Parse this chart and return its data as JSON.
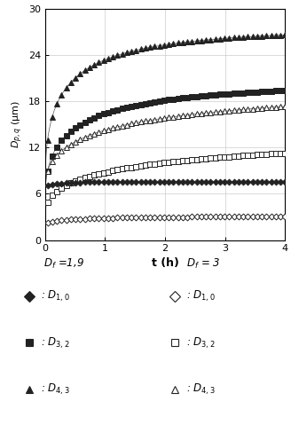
{
  "xlabel": "t (h)",
  "ylabel": "$D_{p,q}$ (μm)",
  "xlim": [
    0,
    4
  ],
  "ylim": [
    0,
    30
  ],
  "xticks": [
    0,
    1,
    2,
    3,
    4
  ],
  "yticks": [
    0,
    6,
    12,
    18,
    24,
    30
  ],
  "figsize": [
    3.28,
    4.79
  ],
  "dpi": 100,
  "curve_params": {
    "Df19_D43": {
      "a0": 7.0,
      "delta": 20.5,
      "b": 1.6,
      "c": 0.48,
      "filled": true,
      "marker": "^",
      "ms": 4.5
    },
    "Df19_D32": {
      "a0": 5.5,
      "delta": 15.0,
      "b": 1.3,
      "c": 0.5,
      "filled": true,
      "marker": "s",
      "ms": 4.0
    },
    "Df3_D43": {
      "a0": 6.8,
      "delta": 13.0,
      "b": 0.85,
      "c": 0.48,
      "filled": false,
      "marker": "^",
      "ms": 4.5
    },
    "Df3_D32": {
      "a0": 3.5,
      "delta": 10.0,
      "b": 0.75,
      "c": 0.5,
      "filled": false,
      "marker": "s",
      "ms": 4.0
    },
    "Df19_D10": {
      "a0": 6.8,
      "delta": 0.8,
      "b": 2.5,
      "c": 0.55,
      "filled": true,
      "marker": "D",
      "ms": 3.5
    },
    "Df3_D10": {
      "a0": 2.0,
      "delta": 1.1,
      "b": 1.5,
      "c": 0.55,
      "filled": false,
      "marker": "D",
      "ms": 3.5
    }
  },
  "n_line_points": 300,
  "n_marker_points": 52,
  "marker_t_start": 0.04,
  "line_color": "#555555",
  "marker_color": "#222222",
  "grid_color": "#cccccc",
  "bg_color": "#ffffff",
  "legend_df19": "$D_f$ =1,9",
  "legend_df3": "$D_f$ = 3",
  "legend_rows": [
    {
      "marker": "D",
      "text_l": ": $D_{1,0}$",
      "text_r": ": $D_{1,0}$"
    },
    {
      "marker": "s",
      "text_l": ": $D_{3,2}$",
      "text_r": ": $D_{3,2}$"
    },
    {
      "marker": "^",
      "text_l": ": $D_{4,3}$",
      "text_r": ": $D_{4,3}$"
    }
  ]
}
